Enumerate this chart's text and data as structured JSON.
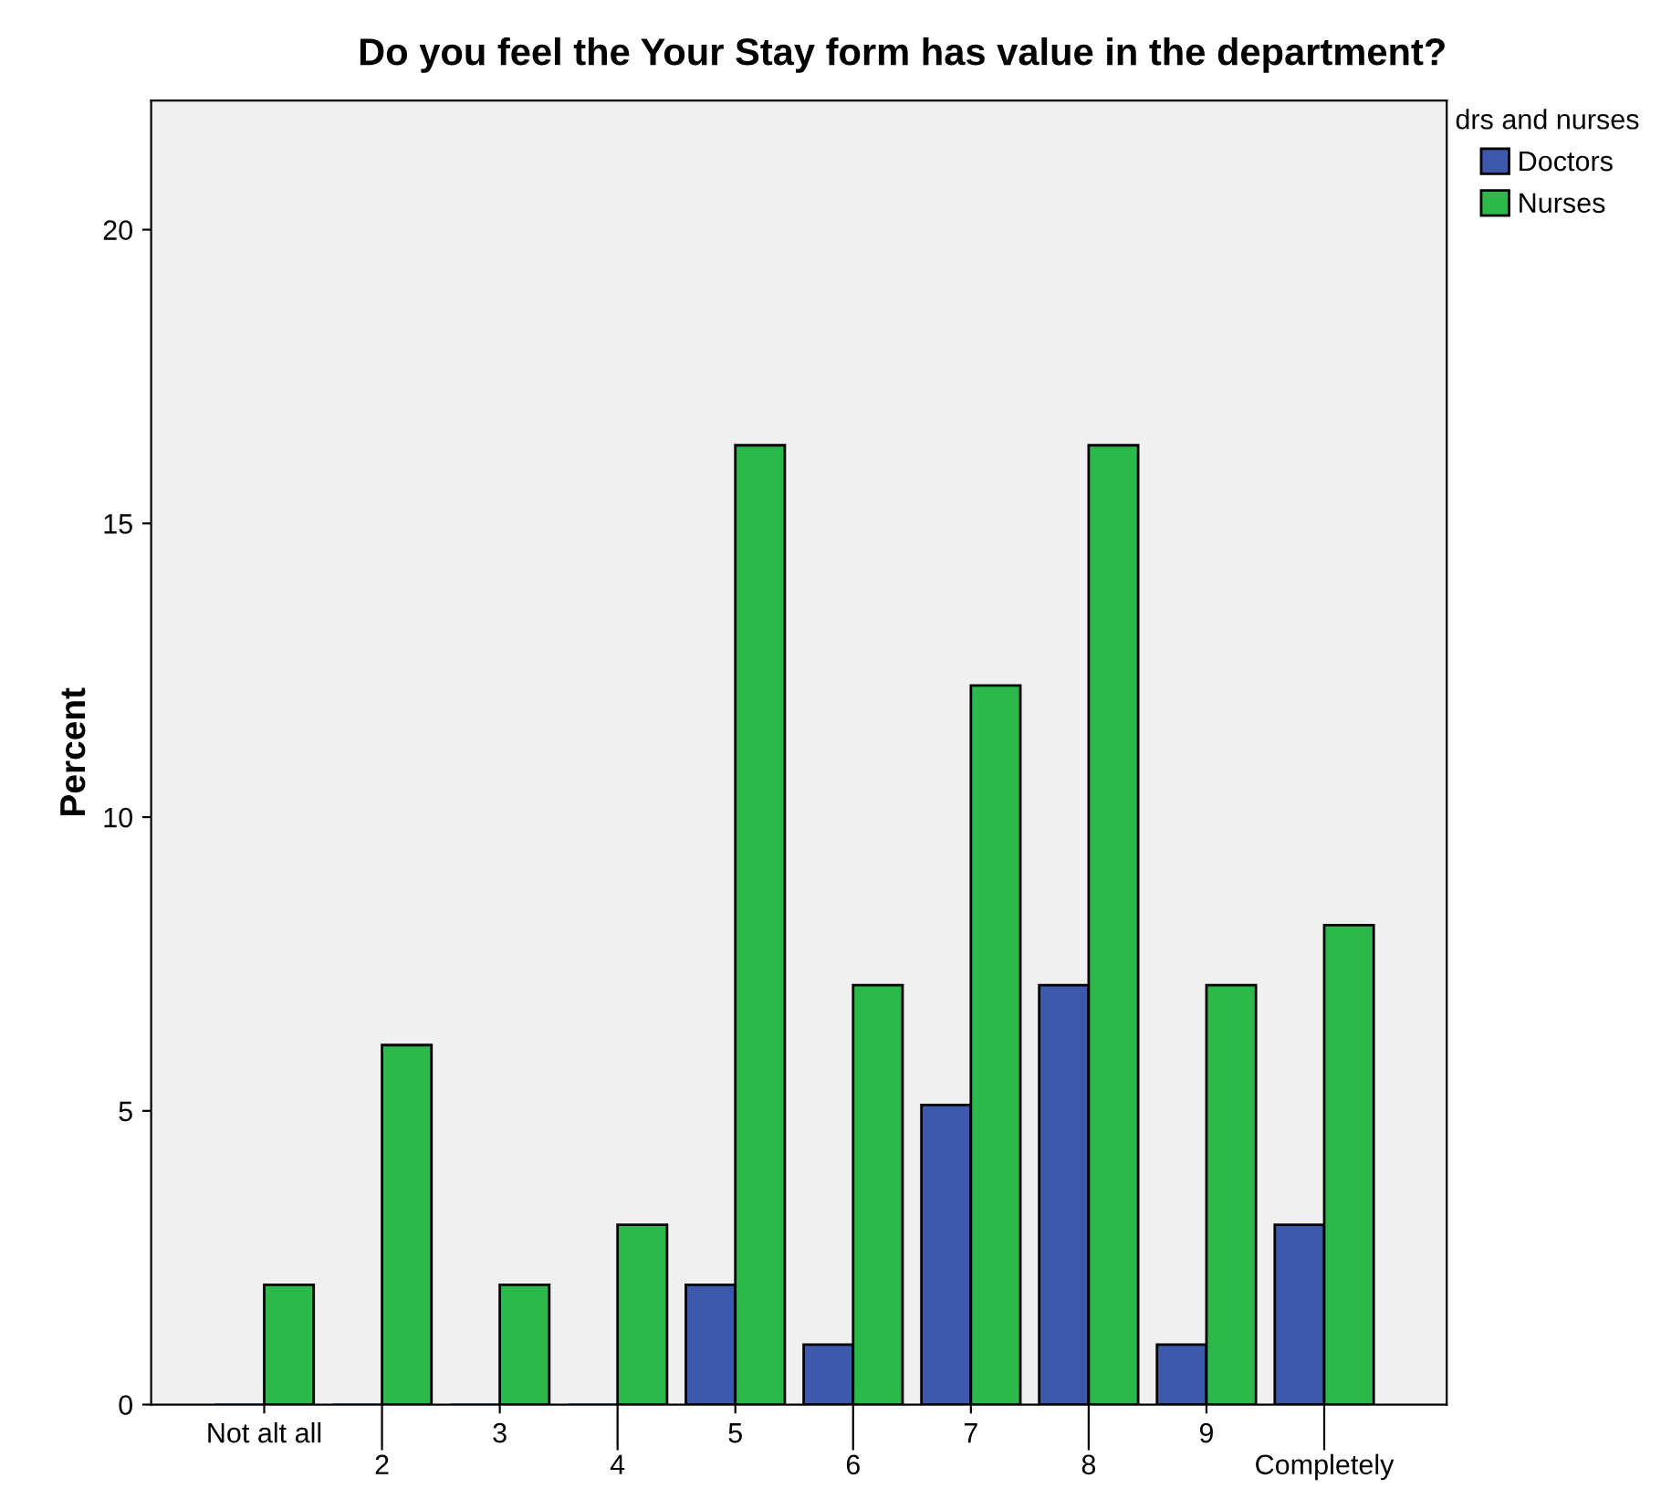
{
  "chart_data": {
    "type": "bar",
    "title": "Do you feel the Your Stay form has value in the department?",
    "ylabel": "Percent",
    "legend_title": "drs and nurses",
    "categories": [
      "Not alt all",
      "2",
      "3",
      "4",
      "5",
      "6",
      "7",
      "8",
      "9",
      "Completely"
    ],
    "series": [
      {
        "name": "Doctors",
        "color": "#3e58ac",
        "values": [
          0,
          0,
          0,
          0,
          2.04,
          1.02,
          5.1,
          7.14,
          1.02,
          3.06
        ]
      },
      {
        "name": "Nurses",
        "color": "#2db84b",
        "values": [
          2.04,
          6.12,
          2.04,
          3.06,
          16.33,
          7.14,
          12.24,
          16.33,
          7.14,
          8.16
        ]
      }
    ],
    "ylim": [
      0,
      22.2
    ],
    "yticks": [
      0,
      5,
      10,
      15,
      20
    ],
    "grid": false,
    "legend": "top right"
  }
}
